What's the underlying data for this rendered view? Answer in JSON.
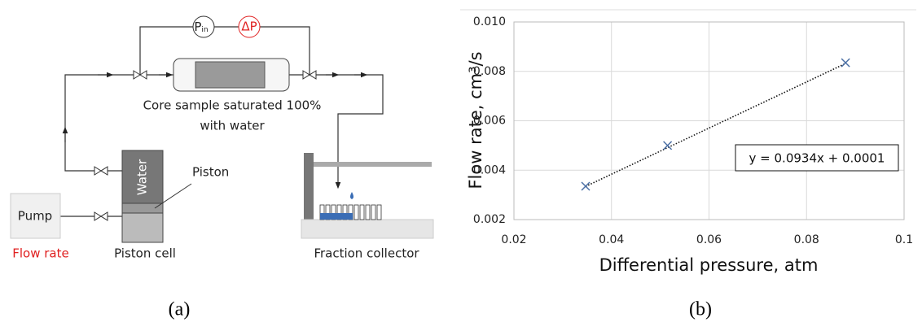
{
  "diagram": {
    "gauge_p": {
      "symbol": "P",
      "subscript": "in"
    },
    "gauge_dp": "ΔP",
    "core_label_line1": "Core sample saturated 100%",
    "core_label_line2": "with water",
    "water": "Water",
    "piston": "Piston",
    "pump": "Pump",
    "flow_rate": "Flow rate",
    "piston_cell": "Piston cell",
    "fraction_collector": "Fraction collector"
  },
  "panel_labels": [
    "(a)",
    "(b)"
  ],
  "chart_data": {
    "type": "scatter",
    "x_label": "Differential pressure, atm",
    "y_label": "Flow rate, cm³/s",
    "x": [
      0.0347,
      0.0515,
      0.088
    ],
    "values": [
      0.00335,
      0.005,
      0.00835
    ],
    "color": "#4a6fa5",
    "marker": "x",
    "trendline": {
      "slope": 0.0934,
      "intercept": 0.0001,
      "label": "y = 0.0934x + 0.0001",
      "style": "dotted"
    },
    "xlim": [
      0.02,
      0.1
    ],
    "xticks": [
      0.02,
      0.04,
      0.06,
      0.08,
      0.1
    ],
    "ylim": [
      0.002,
      0.01
    ],
    "yticks": [
      0.002,
      0.004,
      0.006,
      0.008,
      {
        "value": 0.01,
        "label": "0.010"
      }
    ],
    "grid": true
  }
}
